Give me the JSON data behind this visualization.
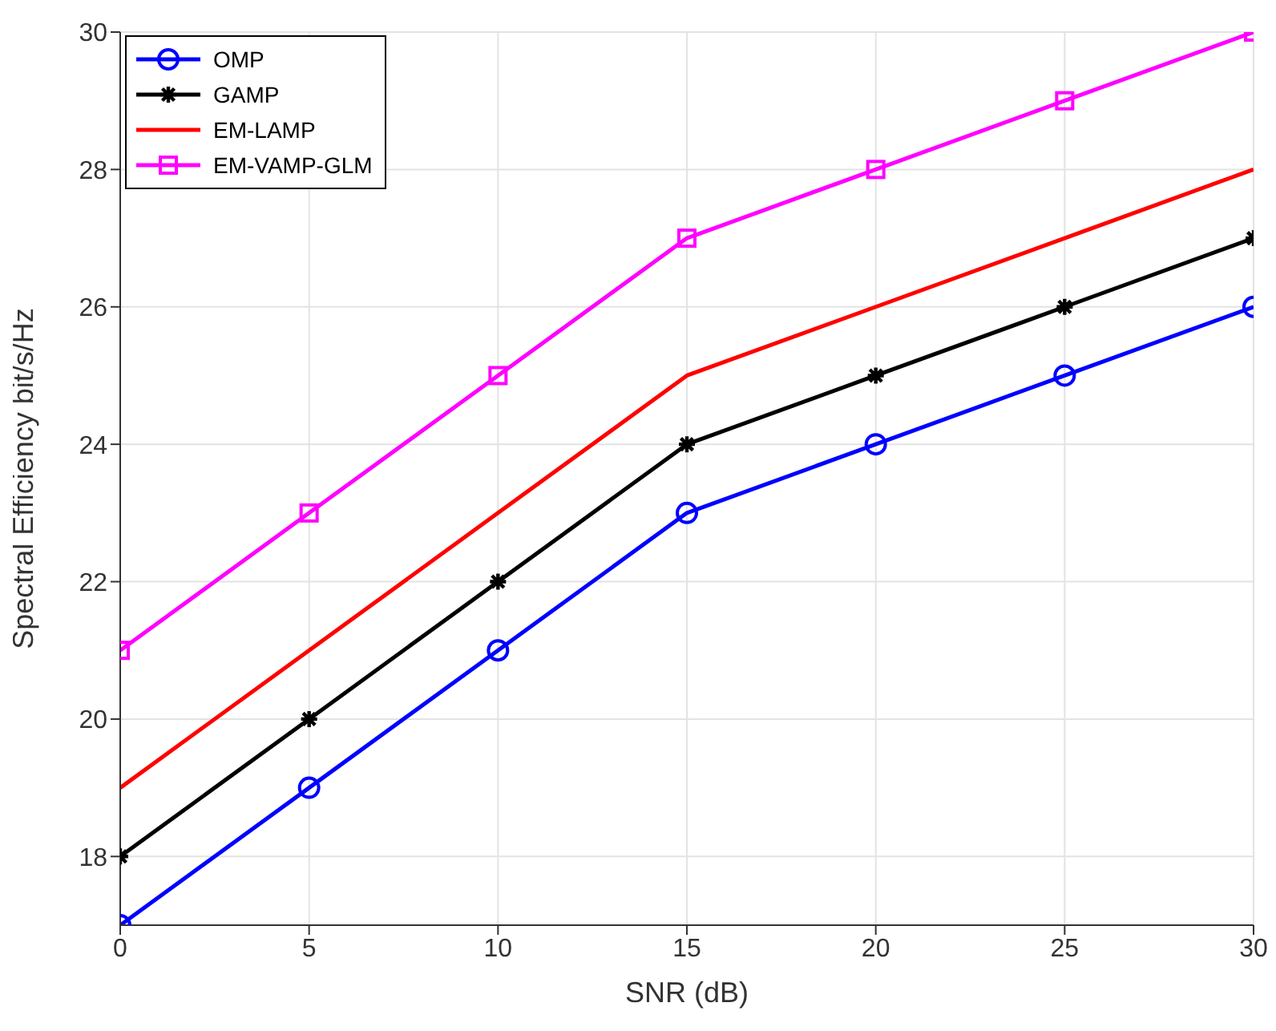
{
  "chart_data": {
    "type": "line",
    "xlabel": "SNR (dB)",
    "ylabel": "Spectral Efficiency bit/s/Hz",
    "x": [
      0,
      5,
      10,
      15,
      20,
      25,
      30
    ],
    "series": [
      {
        "name": "OMP",
        "color": "#0000ff",
        "marker": "circle",
        "values": [
          17,
          19,
          21,
          23,
          24,
          25,
          26
        ]
      },
      {
        "name": "GAMP",
        "color": "#000000",
        "marker": "cross",
        "values": [
          18,
          20,
          22,
          24,
          25,
          26,
          27
        ]
      },
      {
        "name": "EM-LAMP",
        "color": "#ff0000",
        "marker": "none",
        "values": [
          19,
          21,
          23,
          25,
          26,
          27,
          28
        ]
      },
      {
        "name": "EM-VAMP-GLM",
        "color": "#ff00ff",
        "marker": "square",
        "values": [
          21,
          23,
          25,
          27,
          28,
          29,
          30
        ]
      }
    ],
    "xlim": [
      0,
      30
    ],
    "xticks": [
      0,
      5,
      10,
      15,
      20,
      25,
      30
    ],
    "ylim": [
      17,
      30
    ],
    "yticks": [
      18,
      20,
      22,
      24,
      26,
      28,
      30
    ],
    "grid": true,
    "legend": "top left",
    "line_style": "solid"
  }
}
